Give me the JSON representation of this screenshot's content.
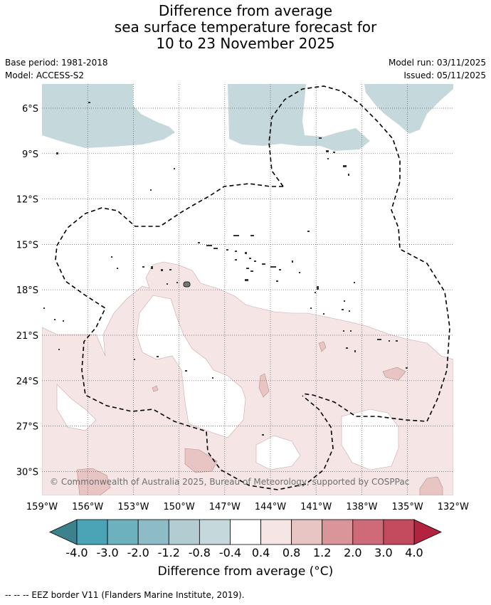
{
  "title": {
    "line1": "Difference from average",
    "line2": "sea surface temperature forecast for",
    "line3": "10 to 23 November 2025"
  },
  "meta": {
    "base_period": "Base period: 1981-2018",
    "model": "Model: ACCESS-S2",
    "model_run": "Model run: 03/11/2025",
    "issued": "Issued: 05/11/2025"
  },
  "map": {
    "lat_labels": [
      "6°S",
      "9°S",
      "12°S",
      "15°S",
      "18°S",
      "21°S",
      "24°S",
      "27°S",
      "30°S"
    ],
    "lon_labels": [
      "159°W",
      "156°W",
      "153°W",
      "150°W",
      "147°W",
      "144°W",
      "141°W",
      "138°W",
      "135°W",
      "132°W"
    ],
    "copyright": "© Commonwealth of Australia 2025, Bureau of Meteorology, supported by COSPPac",
    "colors": {
      "cool_band": "#c5d8dc",
      "warm_light": "#f5e6e5",
      "warm_mid": "#e8c5c3",
      "land": "#909090"
    }
  },
  "colorbar": {
    "ticks": [
      "-4.0",
      "-3.0",
      "-2.0",
      "-1.2",
      "-0.8",
      "-0.4",
      "0.4",
      "0.8",
      "1.2",
      "2.0",
      "3.0",
      "4.0"
    ],
    "colors": [
      "#3d818d",
      "#4aa4b5",
      "#6db0be",
      "#8ebcc6",
      "#b2ccd2",
      "#c5d8dc",
      "#ffffff",
      "#f5e6e5",
      "#e8c5c3",
      "#d9959a",
      "#cf6a78",
      "#c44b5e",
      "#b2233f"
    ],
    "label": "Difference from average (°C)"
  },
  "footer": {
    "legend": "--  --  -- EEZ border V11 (Flanders Marine Institute, 2019)."
  }
}
